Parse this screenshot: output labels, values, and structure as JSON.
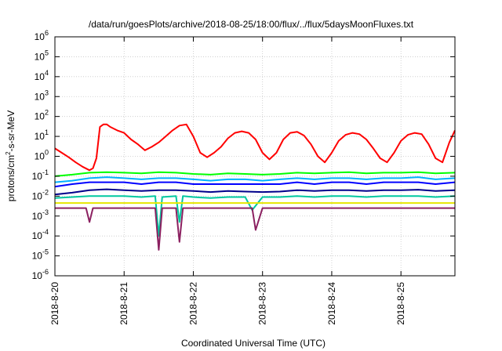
{
  "chart_data": {
    "type": "line",
    "title": "/data/run/goesPlots/archive/2018-08-25/18:00/flux/../flux/5daysMoonFluxes.txt",
    "xlabel": "Coordinated Universal Time (UTC)",
    "ylabel": {
      "base": "protons/cm",
      "sup": "2",
      "rest": "-s-sr-MeV"
    },
    "x_range_days": [
      "2018-08-20 00:00",
      "2018-08-25 18:00"
    ],
    "x_ticks": [
      "2018-8-20",
      "2018-8-21",
      "2018-8-22",
      "2018-8-23",
      "2018-8-24",
      "2018-8-25"
    ],
    "y_scale": "log",
    "ylim": [
      1e-06,
      1000000.0
    ],
    "y_ticks": [
      {
        "base": "10",
        "exp": "-6",
        "value": 1e-06
      },
      {
        "base": "10",
        "exp": "-5",
        "value": 1e-05
      },
      {
        "base": "10",
        "exp": "-4",
        "value": 0.0001
      },
      {
        "base": "10",
        "exp": "-3",
        "value": 0.001
      },
      {
        "base": "10",
        "exp": "-2",
        "value": 0.01
      },
      {
        "base": "10",
        "exp": "-1",
        "value": 0.1
      },
      {
        "base": "10",
        "exp": "0",
        "value": 1
      },
      {
        "base": "10",
        "exp": "1",
        "value": 10
      },
      {
        "base": "10",
        "exp": "2",
        "value": 100
      },
      {
        "base": "10",
        "exp": "3",
        "value": 1000
      },
      {
        "base": "10",
        "exp": "4",
        "value": 10000
      },
      {
        "base": "10",
        "exp": "5",
        "value": 100000
      },
      {
        "base": "10",
        "exp": "6",
        "value": 1000000
      }
    ],
    "grid": true,
    "legend": "none",
    "series": [
      {
        "color": "#ff0000",
        "x": [
          0.0,
          0.1,
          0.2,
          0.3,
          0.4,
          0.5,
          0.55,
          0.6,
          0.65,
          0.7,
          0.75,
          0.8,
          0.9,
          1.0,
          1.1,
          1.2,
          1.3,
          1.4,
          1.5,
          1.6,
          1.7,
          1.8,
          1.9,
          2.0,
          2.1,
          2.2,
          2.3,
          2.4,
          2.5,
          2.6,
          2.7,
          2.8,
          2.9,
          3.0,
          3.1,
          3.2,
          3.3,
          3.4,
          3.5,
          3.6,
          3.7,
          3.8,
          3.9,
          4.0,
          4.1,
          4.2,
          4.3,
          4.4,
          4.5,
          4.6,
          4.7,
          4.8,
          4.9,
          5.0,
          5.1,
          5.2,
          5.3,
          5.4,
          5.5,
          5.6,
          5.7,
          5.78
        ],
        "y": [
          2.5,
          1.5,
          0.9,
          0.5,
          0.3,
          0.2,
          0.25,
          0.8,
          30,
          40,
          40,
          30,
          20,
          15,
          7,
          4,
          2,
          3,
          5,
          10,
          20,
          35,
          40,
          10,
          1.5,
          0.9,
          1.5,
          3,
          8,
          15,
          18,
          15,
          7,
          1.5,
          0.7,
          1.5,
          7,
          15,
          17,
          11,
          4,
          1,
          0.5,
          1.5,
          6,
          12,
          15,
          13,
          7,
          2.5,
          0.8,
          0.5,
          1.5,
          6,
          12,
          15,
          13,
          4,
          0.8,
          0.5,
          5,
          20
        ]
      },
      {
        "color": "#00ff00",
        "x": [
          0.0,
          0.25,
          0.5,
          0.75,
          1.0,
          1.25,
          1.5,
          1.75,
          2.0,
          2.25,
          2.5,
          2.75,
          3.0,
          3.25,
          3.5,
          3.75,
          4.0,
          4.25,
          4.5,
          4.75,
          5.0,
          5.25,
          5.5,
          5.78
        ],
        "y": [
          0.1,
          0.12,
          0.15,
          0.16,
          0.15,
          0.14,
          0.16,
          0.15,
          0.13,
          0.12,
          0.14,
          0.13,
          0.12,
          0.13,
          0.15,
          0.14,
          0.15,
          0.16,
          0.14,
          0.15,
          0.15,
          0.16,
          0.14,
          0.15
        ]
      },
      {
        "color": "#00b0ff",
        "x": [
          0.0,
          0.25,
          0.5,
          0.75,
          1.0,
          1.25,
          1.5,
          1.75,
          2.0,
          2.25,
          2.5,
          2.75,
          3.0,
          3.25,
          3.5,
          3.75,
          4.0,
          4.25,
          4.5,
          4.75,
          5.0,
          5.25,
          5.5,
          5.78
        ],
        "y": [
          0.05,
          0.06,
          0.08,
          0.09,
          0.08,
          0.07,
          0.08,
          0.08,
          0.07,
          0.06,
          0.07,
          0.07,
          0.06,
          0.07,
          0.08,
          0.07,
          0.08,
          0.08,
          0.07,
          0.08,
          0.08,
          0.09,
          0.07,
          0.08
        ]
      },
      {
        "color": "#0000ff",
        "x": [
          0.0,
          0.25,
          0.5,
          0.75,
          1.0,
          1.25,
          1.5,
          1.75,
          2.0,
          2.25,
          2.5,
          2.75,
          3.0,
          3.25,
          3.5,
          3.75,
          4.0,
          4.25,
          4.5,
          4.75,
          5.0,
          5.25,
          5.5,
          5.78
        ],
        "y": [
          0.03,
          0.04,
          0.05,
          0.05,
          0.05,
          0.04,
          0.05,
          0.05,
          0.04,
          0.04,
          0.04,
          0.04,
          0.04,
          0.04,
          0.05,
          0.04,
          0.05,
          0.05,
          0.04,
          0.05,
          0.05,
          0.05,
          0.04,
          0.05
        ]
      },
      {
        "color": "#00008b",
        "x": [
          0.0,
          0.25,
          0.5,
          0.75,
          1.0,
          1.25,
          1.5,
          1.75,
          2.0,
          2.25,
          2.5,
          2.75,
          3.0,
          3.25,
          3.5,
          3.75,
          4.0,
          4.25,
          4.5,
          4.75,
          5.0,
          5.25,
          5.5,
          5.78
        ],
        "y": [
          0.012,
          0.015,
          0.02,
          0.022,
          0.02,
          0.018,
          0.02,
          0.02,
          0.018,
          0.016,
          0.018,
          0.017,
          0.016,
          0.017,
          0.02,
          0.018,
          0.02,
          0.02,
          0.018,
          0.02,
          0.02,
          0.021,
          0.018,
          0.02
        ]
      },
      {
        "color": "#00c8a0",
        "x": [
          0.0,
          0.25,
          0.5,
          0.75,
          1.0,
          1.25,
          1.45,
          1.5,
          1.55,
          1.75,
          1.8,
          1.85,
          2.0,
          2.25,
          2.5,
          2.75,
          2.85,
          3.0,
          3.25,
          3.5,
          3.75,
          4.0,
          4.25,
          4.5,
          4.75,
          5.0,
          5.25,
          5.5,
          5.78
        ],
        "y": [
          0.008,
          0.009,
          0.01,
          0.01,
          0.01,
          0.009,
          0.01,
          0.0001,
          0.009,
          0.01,
          0.0005,
          0.01,
          0.009,
          0.008,
          0.009,
          0.009,
          0.002,
          0.009,
          0.009,
          0.01,
          0.009,
          0.01,
          0.01,
          0.009,
          0.01,
          0.01,
          0.01,
          0.009,
          0.01
        ]
      },
      {
        "color": "#e6e600",
        "x": [
          0.0,
          0.5,
          1.0,
          1.5,
          2.0,
          2.5,
          3.0,
          3.5,
          4.0,
          4.5,
          5.0,
          5.5,
          5.78
        ],
        "y": [
          0.0045,
          0.0045,
          0.0045,
          0.0045,
          0.0045,
          0.0045,
          0.0045,
          0.0045,
          0.0045,
          0.0045,
          0.0045,
          0.0045,
          0.0045
        ]
      },
      {
        "color": "#8b2060",
        "x": [
          0.0,
          0.25,
          0.45,
          0.5,
          0.55,
          0.75,
          1.0,
          1.25,
          1.45,
          1.5,
          1.55,
          1.75,
          1.8,
          1.85,
          2.0,
          2.25,
          2.5,
          2.75,
          2.85,
          2.9,
          3.0,
          3.25,
          3.5,
          3.75,
          4.0,
          4.25,
          4.5,
          4.75,
          5.0,
          5.25,
          5.5,
          5.78
        ],
        "y": [
          0.0025,
          0.0025,
          0.0025,
          0.0005,
          0.0025,
          0.0025,
          0.0025,
          0.0025,
          0.0025,
          2e-05,
          0.0025,
          0.0025,
          5e-05,
          0.0025,
          0.0025,
          0.0025,
          0.0025,
          0.0025,
          0.0025,
          0.0002,
          0.0025,
          0.0025,
          0.0025,
          0.0025,
          0.0025,
          0.0025,
          0.0025,
          0.0025,
          0.0025,
          0.0025,
          0.0025,
          0.0025
        ]
      }
    ]
  }
}
